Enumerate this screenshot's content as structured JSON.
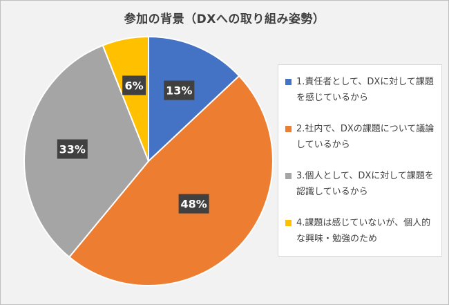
{
  "chart_data": {
    "type": "pie",
    "title": "参加の背景（DXへの取り組み姿勢）",
    "slices": [
      {
        "label": "1.責任者として、DXに対して課題を感じているから",
        "value": 13,
        "data_label": "13%",
        "color": "#4472c4"
      },
      {
        "label": "2.社内で、DXの課題について議論しているから",
        "value": 48,
        "data_label": "48%",
        "color": "#ed7d31"
      },
      {
        "label": "3.個人として、DXに対して課題を認識しているから",
        "value": 33,
        "data_label": "33%",
        "color": "#a5a5a5"
      },
      {
        "label": "4.課題は感じていないが、個人的な興味・勉強のため",
        "value": 6,
        "data_label": "6%",
        "color": "#ffc000"
      }
    ],
    "legend_position": "right"
  }
}
